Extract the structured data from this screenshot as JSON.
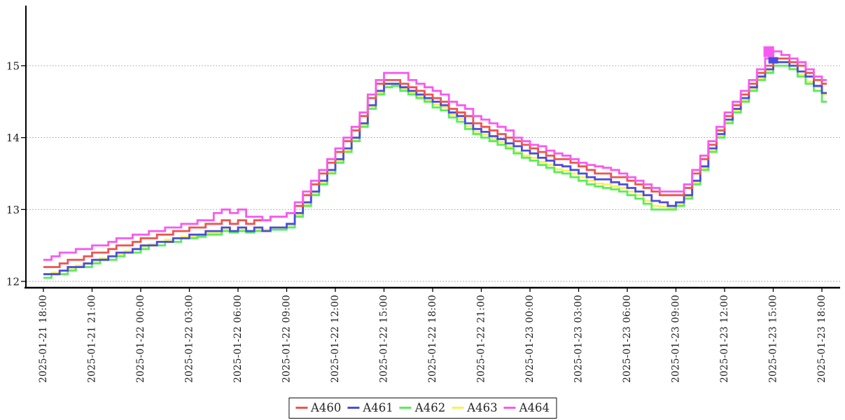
{
  "chart_data": {
    "type": "line",
    "subtype": "step",
    "title": "",
    "xlabel": "",
    "ylabel": "",
    "x": {
      "start_hour": 0,
      "step_hours": 0.5,
      "count": 97,
      "origin": "2025-01-21 18:00"
    },
    "x_tick_interval_hours": 3,
    "x_tick_labels": [
      "2025-01-21 18:00",
      "2025-01-21 21:00",
      "2025-01-22 00:00",
      "2025-01-22 03:00",
      "2025-01-22 06:00",
      "2025-01-22 09:00",
      "2025-01-22 12:00",
      "2025-01-22 15:00",
      "2025-01-22 18:00",
      "2025-01-22 21:00",
      "2025-01-23 00:00",
      "2025-01-23 03:00",
      "2025-01-23 06:00",
      "2025-01-23 09:00",
      "2025-01-23 12:00",
      "2025-01-23 15:00",
      "2025-01-23 18:00"
    ],
    "y_ticks": [
      12,
      13,
      14,
      15
    ],
    "ylim": [
      11.9,
      15.82
    ],
    "grid": "horizontal-dotted",
    "legend_position": "bottom-center",
    "draw_order": [
      "A463",
      "A462",
      "A461",
      "A460",
      "A464"
    ],
    "series": [
      {
        "name": "A460",
        "color": "#ee544e",
        "values": [
          12.2,
          12.2,
          12.25,
          12.3,
          12.3,
          12.35,
          12.4,
          12.4,
          12.45,
          12.5,
          12.5,
          12.55,
          12.6,
          12.6,
          12.65,
          12.65,
          12.7,
          12.7,
          12.75,
          12.75,
          12.8,
          12.8,
          12.85,
          12.8,
          12.85,
          12.8,
          12.85,
          12.85,
          12.9,
          12.9,
          12.95,
          13.05,
          13.2,
          13.35,
          13.5,
          13.65,
          13.8,
          13.95,
          14.1,
          14.3,
          14.55,
          14.75,
          14.8,
          14.8,
          14.75,
          14.7,
          14.65,
          14.6,
          14.55,
          14.5,
          14.4,
          14.35,
          14.3,
          14.2,
          14.15,
          14.1,
          14.05,
          14.0,
          13.95,
          13.9,
          13.85,
          13.8,
          13.75,
          13.7,
          13.7,
          13.65,
          13.6,
          13.55,
          13.5,
          13.5,
          13.45,
          13.45,
          13.4,
          13.35,
          13.3,
          13.25,
          13.2,
          13.2,
          13.2,
          13.3,
          13.5,
          13.7,
          13.9,
          14.1,
          14.3,
          14.45,
          14.6,
          14.75,
          14.9,
          15.0,
          15.1,
          15.1,
          15.05,
          15.0,
          14.9,
          14.8,
          14.75
        ]
      },
      {
        "name": "A461",
        "color": "#4c4cdf",
        "values": [
          12.1,
          12.1,
          12.15,
          12.2,
          12.2,
          12.25,
          12.3,
          12.3,
          12.35,
          12.4,
          12.4,
          12.45,
          12.5,
          12.5,
          12.55,
          12.55,
          12.6,
          12.6,
          12.65,
          12.65,
          12.7,
          12.7,
          12.75,
          12.7,
          12.75,
          12.7,
          12.75,
          12.7,
          12.75,
          12.75,
          12.8,
          12.95,
          13.1,
          13.25,
          13.4,
          13.55,
          13.7,
          13.85,
          14.0,
          14.2,
          14.45,
          14.65,
          14.75,
          14.75,
          14.7,
          14.65,
          14.6,
          14.55,
          14.5,
          14.45,
          14.35,
          14.3,
          14.2,
          14.12,
          14.08,
          14.02,
          13.98,
          13.92,
          13.88,
          13.82,
          13.78,
          13.72,
          13.68,
          13.62,
          13.6,
          13.55,
          13.5,
          13.45,
          13.42,
          13.42,
          13.38,
          13.35,
          13.3,
          13.25,
          13.2,
          13.12,
          13.1,
          13.05,
          13.1,
          13.2,
          13.4,
          13.6,
          13.85,
          14.05,
          14.25,
          14.4,
          14.55,
          14.7,
          14.85,
          14.95,
          15.05,
          15.05,
          15.0,
          14.92,
          14.85,
          14.72,
          14.62
        ]
      },
      {
        "name": "A462",
        "color": "#5aec5a",
        "values": [
          12.05,
          12.1,
          12.1,
          12.15,
          12.2,
          12.2,
          12.25,
          12.3,
          12.3,
          12.35,
          12.4,
          12.4,
          12.45,
          12.5,
          12.5,
          12.55,
          12.55,
          12.6,
          12.6,
          12.62,
          12.65,
          12.65,
          12.7,
          12.68,
          12.7,
          12.68,
          12.7,
          12.7,
          12.72,
          12.72,
          12.75,
          12.9,
          13.05,
          13.2,
          13.35,
          13.5,
          13.65,
          13.8,
          13.95,
          14.15,
          14.4,
          14.6,
          14.7,
          14.72,
          14.65,
          14.6,
          14.55,
          14.5,
          14.42,
          14.38,
          14.28,
          14.22,
          14.12,
          14.05,
          14.0,
          13.95,
          13.9,
          13.85,
          13.78,
          13.72,
          13.68,
          13.62,
          13.58,
          13.52,
          13.5,
          13.45,
          13.4,
          13.35,
          13.32,
          13.3,
          13.28,
          13.25,
          13.2,
          13.15,
          13.08,
          13.0,
          13.0,
          13.0,
          13.05,
          13.15,
          13.35,
          13.55,
          13.8,
          14.0,
          14.2,
          14.35,
          14.5,
          14.65,
          14.8,
          14.9,
          15.0,
          15.0,
          14.95,
          14.85,
          14.75,
          14.65,
          14.5
        ]
      },
      {
        "name": "A463",
        "color": "#f6f25b",
        "values": [
          12.1,
          12.12,
          12.15,
          12.18,
          12.22,
          12.25,
          12.28,
          12.32,
          12.35,
          12.38,
          12.42,
          12.45,
          12.48,
          12.52,
          12.55,
          12.58,
          12.6,
          12.62,
          12.62,
          12.65,
          12.68,
          12.68,
          12.72,
          12.7,
          12.72,
          12.7,
          12.72,
          12.72,
          12.75,
          12.75,
          12.78,
          12.92,
          13.08,
          13.22,
          13.38,
          13.52,
          13.68,
          13.82,
          13.98,
          14.18,
          14.42,
          14.62,
          14.72,
          14.72,
          14.68,
          14.62,
          14.58,
          14.52,
          14.46,
          14.42,
          14.32,
          14.26,
          14.16,
          14.08,
          14.04,
          13.98,
          13.94,
          13.88,
          13.8,
          13.75,
          13.72,
          13.66,
          13.62,
          13.56,
          13.54,
          13.5,
          13.45,
          13.4,
          13.36,
          13.35,
          13.32,
          13.3,
          13.25,
          13.2,
          13.12,
          13.05,
          13.04,
          13.02,
          13.08,
          13.18,
          13.38,
          13.58,
          13.82,
          14.02,
          14.22,
          14.38,
          14.52,
          14.68,
          14.82,
          14.92,
          15.0,
          15.0,
          14.96,
          14.88,
          14.78,
          14.7,
          14.6
        ]
      },
      {
        "name": "A464",
        "color": "#f75af0",
        "values": [
          12.3,
          12.35,
          12.4,
          12.4,
          12.45,
          12.45,
          12.5,
          12.5,
          12.55,
          12.6,
          12.6,
          12.65,
          12.65,
          12.7,
          12.7,
          12.75,
          12.75,
          12.8,
          12.8,
          12.85,
          12.85,
          12.95,
          13.0,
          12.95,
          13.0,
          12.9,
          12.9,
          12.85,
          12.9,
          12.9,
          12.95,
          13.1,
          13.25,
          13.4,
          13.55,
          13.7,
          13.85,
          14.0,
          14.15,
          14.35,
          14.6,
          14.8,
          14.9,
          14.9,
          14.9,
          14.8,
          14.75,
          14.7,
          14.65,
          14.6,
          14.5,
          14.45,
          14.4,
          14.3,
          14.25,
          14.2,
          14.15,
          14.1,
          14.0,
          13.95,
          13.9,
          13.88,
          13.82,
          13.78,
          13.75,
          13.7,
          13.65,
          13.62,
          13.6,
          13.58,
          13.55,
          13.5,
          13.45,
          13.4,
          13.35,
          13.3,
          13.25,
          13.25,
          13.25,
          13.35,
          13.55,
          13.75,
          13.95,
          14.15,
          14.35,
          14.5,
          14.65,
          14.8,
          14.95,
          15.1,
          15.2,
          15.15,
          15.1,
          15.05,
          14.95,
          14.85,
          14.8
        ]
      }
    ],
    "annotations": [
      {
        "series": "A464",
        "kind": "thick-segment",
        "t_start": 44.4,
        "t_end": 45.05,
        "v_top": 15.27,
        "v_bottom": 15.12
      },
      {
        "series": "A461",
        "kind": "thick-segment",
        "t_start": 44.7,
        "t_end": 45.3,
        "v_top": 15.12,
        "v_bottom": 15.03
      }
    ]
  }
}
